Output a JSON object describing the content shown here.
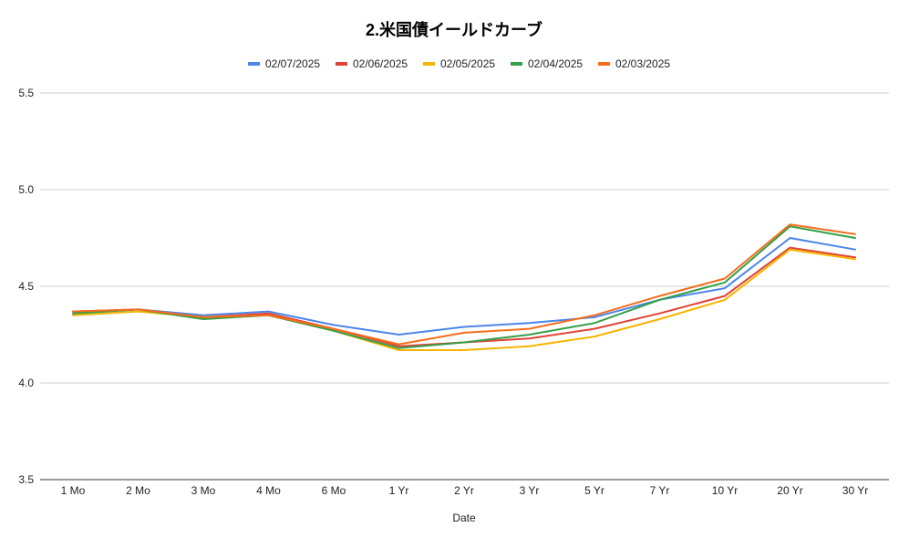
{
  "chart_data": {
    "type": "line",
    "title": "2.米国債イールドカーブ",
    "xlabel": "Date",
    "ylabel": "",
    "categories": [
      "1 Mo",
      "2 Mo",
      "3 Mo",
      "4 Mo",
      "6 Mo",
      "1 Yr",
      "2 Yr",
      "3 Yr",
      "5 Yr",
      "7 Yr",
      "10 Yr",
      "20 Yr",
      "30 Yr"
    ],
    "ylim": [
      3.5,
      5.5
    ],
    "yticks": [
      "3.5",
      "4.0",
      "4.5",
      "5.0",
      "5.5"
    ],
    "grid": true,
    "legend_position": "top",
    "series": [
      {
        "name": "02/07/2025",
        "color": "#4a86e8",
        "values": [
          4.36,
          4.38,
          4.35,
          4.37,
          4.3,
          4.25,
          4.29,
          4.31,
          4.34,
          4.43,
          4.49,
          4.75,
          4.69
        ]
      },
      {
        "name": "02/06/2025",
        "color": "#e04337",
        "values": [
          4.37,
          4.38,
          4.34,
          4.36,
          4.28,
          4.19,
          4.21,
          4.23,
          4.28,
          4.36,
          4.45,
          4.7,
          4.65
        ]
      },
      {
        "name": "02/05/2025",
        "color": "#f6b400",
        "values": [
          4.35,
          4.37,
          4.34,
          4.35,
          4.27,
          4.17,
          4.17,
          4.19,
          4.24,
          4.33,
          4.43,
          4.69,
          4.64
        ]
      },
      {
        "name": "02/04/2025",
        "color": "#34a047",
        "values": [
          4.36,
          4.38,
          4.33,
          4.35,
          4.27,
          4.18,
          4.21,
          4.25,
          4.31,
          4.43,
          4.52,
          4.81,
          4.75
        ]
      },
      {
        "name": "02/03/2025",
        "color": "#f56d1c",
        "values": [
          4.37,
          4.38,
          4.34,
          4.35,
          4.28,
          4.2,
          4.26,
          4.28,
          4.35,
          4.45,
          4.54,
          4.82,
          4.77
        ]
      }
    ]
  }
}
